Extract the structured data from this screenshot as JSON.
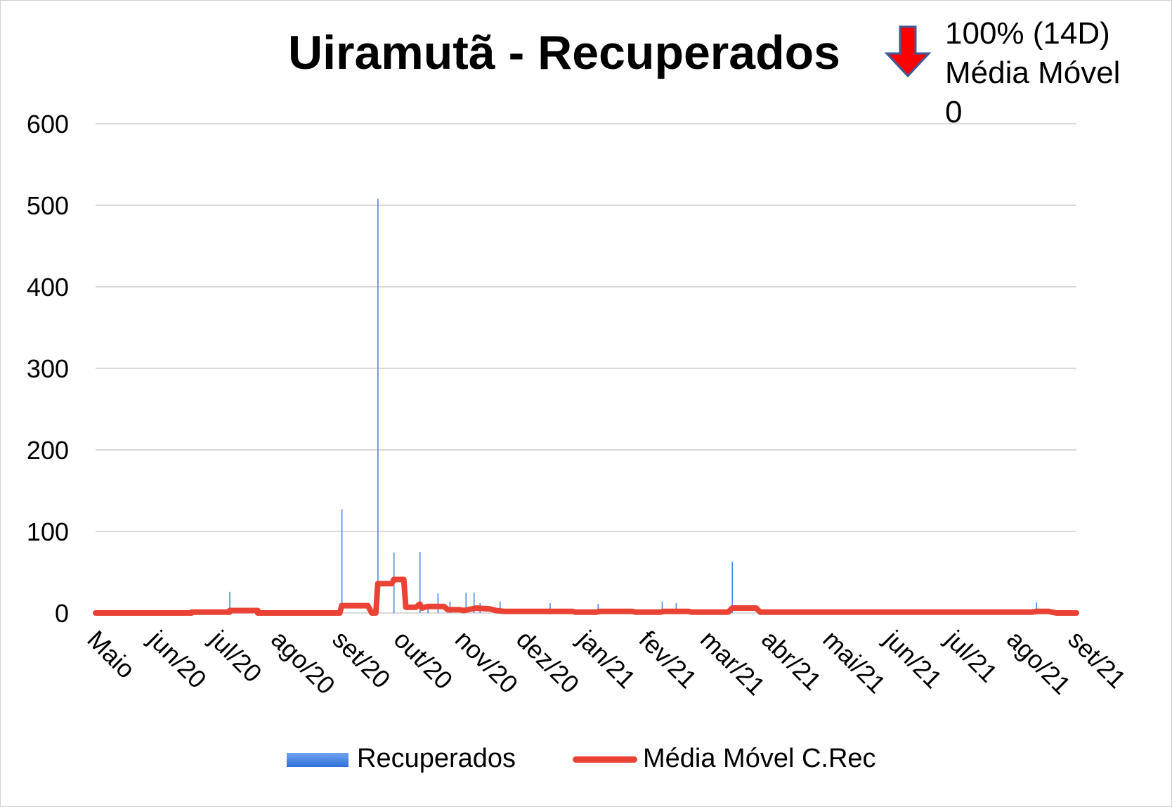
{
  "chart_data": {
    "type": "bar",
    "title": "Uiramutã - Recuperados",
    "annotation": [
      "100% (14D)",
      "Média Móvel",
      "0"
    ],
    "trend_icon": "down-arrow-icon",
    "xlabel": "",
    "ylabel": "",
    "ylim": [
      0,
      600
    ],
    "yticks": [
      0,
      100,
      200,
      300,
      400,
      500,
      600
    ],
    "grid": true,
    "legend_position": "bottom",
    "x_tick_labels": [
      "Maio",
      "jun/20",
      "jul/20",
      "ago/20",
      "set/20",
      "out/20",
      "nov/20",
      "dez/20",
      "jan/21",
      "fev/21",
      "mar/21",
      "abr/21",
      "mai/21",
      "jun/21",
      "jul/21",
      "ago/21",
      "set/21"
    ],
    "x_range_days": [
      0,
      490
    ],
    "series": [
      {
        "name": "Recuperados",
        "type": "bar",
        "color": "#4a86e8",
        "points": [
          {
            "day": 67,
            "value": 26
          },
          {
            "day": 123,
            "value": 127
          },
          {
            "day": 141,
            "value": 508
          },
          {
            "day": 149,
            "value": 74
          },
          {
            "day": 162,
            "value": 75
          },
          {
            "day": 166,
            "value": 8
          },
          {
            "day": 171,
            "value": 24
          },
          {
            "day": 177,
            "value": 14
          },
          {
            "day": 185,
            "value": 25
          },
          {
            "day": 189,
            "value": 25
          },
          {
            "day": 192,
            "value": 12
          },
          {
            "day": 202,
            "value": 14
          },
          {
            "day": 227,
            "value": 12
          },
          {
            "day": 251,
            "value": 11
          },
          {
            "day": 283,
            "value": 14
          },
          {
            "day": 290,
            "value": 12
          },
          {
            "day": 318,
            "value": 63
          },
          {
            "day": 470,
            "value": 13
          }
        ]
      },
      {
        "name": "Média Móvel C.Rec",
        "type": "line",
        "color": "#ea4335",
        "points": [
          [
            0,
            0
          ],
          [
            48,
            0
          ],
          [
            48,
            1
          ],
          [
            67,
            1
          ],
          [
            67,
            3
          ],
          [
            81,
            3
          ],
          [
            81,
            0
          ],
          [
            122,
            0
          ],
          [
            123,
            9
          ],
          [
            136,
            9
          ],
          [
            138,
            0
          ],
          [
            140,
            0
          ],
          [
            141,
            36
          ],
          [
            148,
            36
          ],
          [
            149,
            41
          ],
          [
            154,
            41
          ],
          [
            155,
            7
          ],
          [
            160,
            7
          ],
          [
            162,
            11
          ],
          [
            163,
            6
          ],
          [
            166,
            8
          ],
          [
            174,
            8
          ],
          [
            176,
            4
          ],
          [
            182,
            4
          ],
          [
            184,
            3
          ],
          [
            190,
            6
          ],
          [
            197,
            5
          ],
          [
            200,
            3
          ],
          [
            204,
            2
          ],
          [
            222,
            2
          ],
          [
            226,
            2
          ],
          [
            238,
            2
          ],
          [
            240,
            1
          ],
          [
            250,
            1
          ],
          [
            252,
            2
          ],
          [
            268,
            2
          ],
          [
            270,
            1
          ],
          [
            282,
            1
          ],
          [
            284,
            2
          ],
          [
            296,
            2
          ],
          [
            298,
            1
          ],
          [
            316,
            1
          ],
          [
            318,
            6
          ],
          [
            330,
            6
          ],
          [
            332,
            1
          ],
          [
            336,
            1
          ],
          [
            346,
            1
          ],
          [
            360,
            1
          ],
          [
            380,
            1
          ],
          [
            400,
            1
          ],
          [
            420,
            1
          ],
          [
            440,
            1
          ],
          [
            468,
            1
          ],
          [
            470,
            2
          ],
          [
            476,
            2
          ],
          [
            480,
            0
          ],
          [
            490,
            0
          ]
        ]
      }
    ]
  }
}
